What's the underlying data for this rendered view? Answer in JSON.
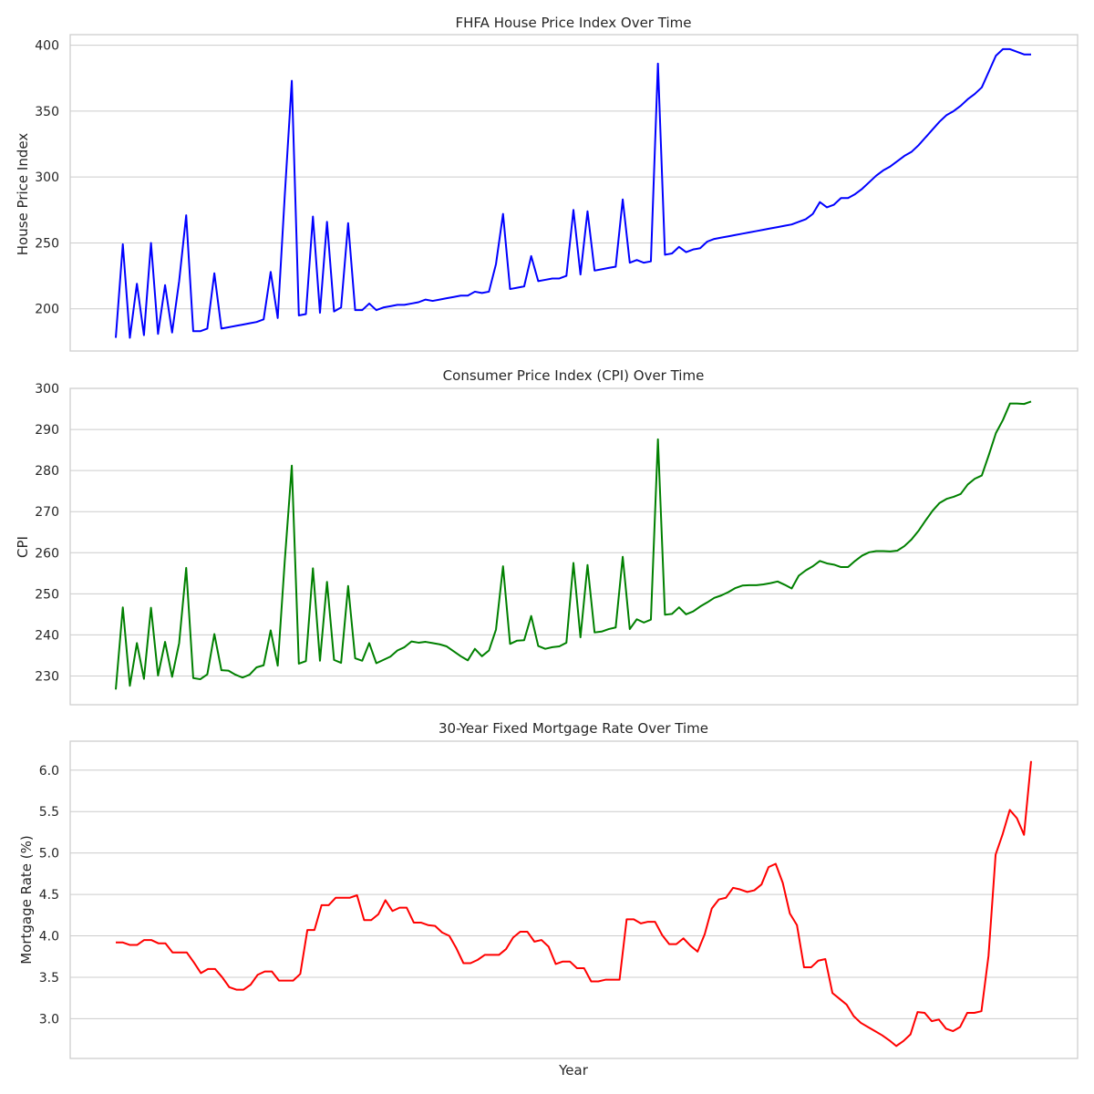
{
  "chart_data": [
    {
      "type": "line",
      "title": "FHFA House Price Index Over Time",
      "xlabel": "",
      "ylabel": "House Price Index",
      "ylim": [
        168,
        408
      ],
      "yticks": [
        200,
        250,
        300,
        350,
        400
      ],
      "grid": true,
      "series": [
        {
          "color": "#0000ff",
          "values": [
            178,
            249,
            178,
            219,
            180,
            250,
            181,
            218,
            182,
            221,
            271,
            183,
            183,
            185,
            227,
            185,
            186,
            187,
            188,
            189,
            190,
            192,
            228,
            193,
            286,
            373,
            195,
            196,
            270,
            197,
            266,
            198,
            201,
            265,
            199,
            199,
            204,
            199,
            201,
            202,
            203,
            203,
            204,
            205,
            207,
            206,
            207,
            208,
            209,
            210,
            210,
            213,
            212,
            213,
            234,
            272,
            215,
            216,
            217,
            240,
            221,
            222,
            223,
            223,
            225,
            275,
            226,
            274,
            229,
            230,
            231,
            232,
            283,
            235,
            237,
            235,
            236,
            386,
            241,
            242,
            247,
            243,
            245,
            246,
            251,
            253,
            254,
            255,
            256,
            257,
            258,
            259,
            260,
            261,
            262,
            263,
            264,
            266,
            268,
            272,
            281,
            277,
            279,
            284,
            284,
            287,
            291,
            296,
            301,
            305,
            308,
            312,
            316,
            319,
            324,
            330,
            336,
            342,
            347,
            350,
            354,
            359,
            363,
            368,
            380,
            392,
            397,
            397,
            395,
            393,
            393
          ]
        }
      ]
    },
    {
      "type": "line",
      "title": "Consumer Price Index (CPI) Over Time",
      "xlabel": "",
      "ylabel": "CPI",
      "ylim": [
        223,
        300
      ],
      "yticks": [
        230,
        240,
        250,
        260,
        270,
        280,
        290,
        300
      ],
      "grid": true,
      "series": [
        {
          "color": "#008000",
          "values": [
            226.7,
            246.7,
            227.6,
            238.0,
            229.3,
            246.6,
            230.1,
            238.3,
            229.8,
            238.0,
            256.3,
            229.5,
            229.2,
            230.4,
            240.2,
            231.4,
            231.3,
            230.3,
            229.6,
            230.3,
            232.1,
            232.6,
            241.1,
            232.5,
            258.0,
            281.2,
            233.0,
            233.6,
            256.2,
            233.7,
            252.9,
            233.9,
            233.2,
            251.9,
            234.3,
            233.7,
            238.0,
            233.1,
            233.9,
            234.7,
            236.2,
            237.0,
            238.4,
            238.1,
            238.3,
            238.0,
            237.7,
            237.2,
            236.0,
            234.8,
            233.8,
            236.6,
            234.8,
            236.2,
            241.3,
            256.7,
            237.8,
            238.6,
            238.7,
            244.6,
            237.3,
            236.6,
            237.0,
            237.2,
            238.1,
            257.5,
            239.4,
            257.0,
            240.6,
            240.8,
            241.4,
            241.8,
            259.0,
            241.4,
            243.8,
            243.0,
            243.7,
            287.6,
            244.9,
            245.1,
            246.7,
            245.0,
            245.7,
            246.9,
            247.9,
            249.0,
            249.6,
            250.4,
            251.4,
            252.0,
            252.1,
            252.1,
            252.3,
            252.6,
            253.0,
            252.2,
            251.3,
            254.4,
            255.7,
            256.7,
            258.0,
            257.4,
            257.1,
            256.5,
            256.5,
            258.0,
            259.3,
            260.1,
            260.4,
            260.4,
            260.3,
            260.5,
            261.6,
            263.2,
            265.3,
            267.8,
            270.2,
            272.1,
            273.1,
            273.6,
            274.3,
            276.6,
            278.0,
            278.8,
            283.8,
            289.1,
            292.3,
            296.3,
            296.3,
            296.2,
            296.8
          ]
        }
      ]
    },
    {
      "type": "line",
      "title": "30-Year Fixed Mortgage Rate Over Time",
      "xlabel": "Year",
      "ylabel": "Mortgage Rate (%)",
      "ylim": [
        2.52,
        6.35
      ],
      "yticks": [
        "3.0",
        "3.5",
        "4.0",
        "4.5",
        "5.0",
        "5.5",
        "6.0"
      ],
      "grid": true,
      "series": [
        {
          "color": "#ff0000",
          "values": [
            3.92,
            3.92,
            3.89,
            3.89,
            3.95,
            3.95,
            3.91,
            3.91,
            3.8,
            3.8,
            3.8,
            3.68,
            3.55,
            3.6,
            3.6,
            3.5,
            3.38,
            3.35,
            3.35,
            3.41,
            3.53,
            3.57,
            3.57,
            3.46,
            3.46,
            3.46,
            3.54,
            4.07,
            4.07,
            4.37,
            4.37,
            4.46,
            4.46,
            4.46,
            4.49,
            4.19,
            4.19,
            4.26,
            4.43,
            4.3,
            4.34,
            4.34,
            4.16,
            4.16,
            4.13,
            4.12,
            4.04,
            4.0,
            3.85,
            3.67,
            3.67,
            3.71,
            3.77,
            3.77,
            3.77,
            3.84,
            3.98,
            4.05,
            4.05,
            3.93,
            3.95,
            3.87,
            3.66,
            3.69,
            3.69,
            3.61,
            3.61,
            3.45,
            3.45,
            3.47,
            3.47,
            3.47,
            4.2,
            4.2,
            4.15,
            4.17,
            4.17,
            4.01,
            3.9,
            3.9,
            3.97,
            3.88,
            3.81,
            4.02,
            4.33,
            4.44,
            4.46,
            4.58,
            4.56,
            4.53,
            4.55,
            4.62,
            4.83,
            4.87,
            4.64,
            4.27,
            4.13,
            3.62,
            3.62,
            3.7,
            3.72,
            3.31,
            3.24,
            3.17,
            3.03,
            2.95,
            2.9,
            2.85,
            2.8,
            2.74,
            2.67,
            2.73,
            2.81,
            3.08,
            3.07,
            2.97,
            2.99,
            2.88,
            2.85,
            2.9,
            3.07,
            3.07,
            3.09,
            3.76,
            4.98,
            5.23,
            5.52,
            5.42,
            5.22,
            6.11
          ]
        }
      ]
    }
  ]
}
